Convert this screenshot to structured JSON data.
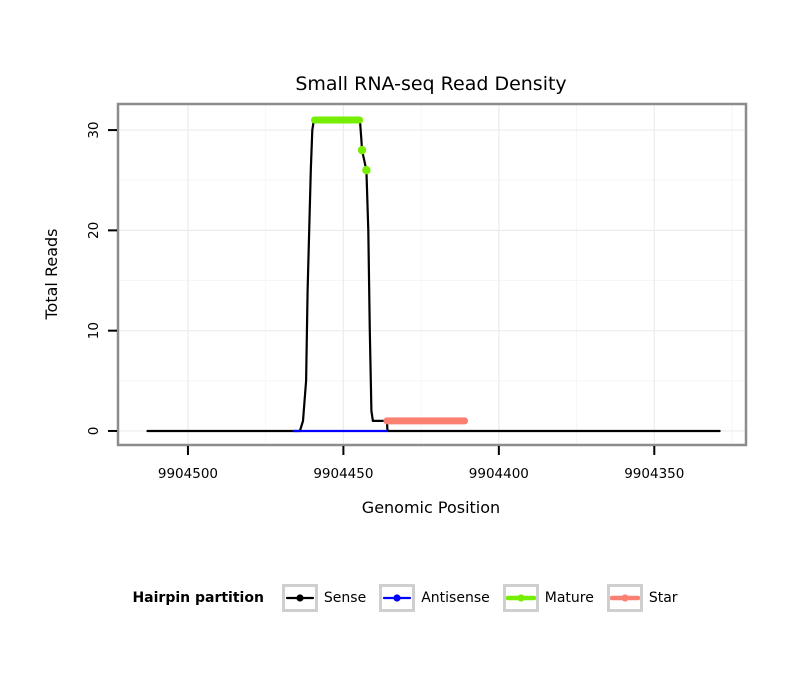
{
  "chart_data": {
    "type": "line",
    "title": "Small RNA-seq Read Density",
    "xlabel": "Genomic Position",
    "ylabel": "Total Reads",
    "legend_title": "Hairpin partition",
    "legend_position": "bottom",
    "grid": true,
    "x_reversed": true,
    "xlim": [
      9904522.5,
      9904320.5
    ],
    "ylim": [
      -1.4,
      32.6
    ],
    "x_ticks": [
      9904500,
      9904450,
      9904400,
      9904350
    ],
    "y_ticks": [
      0,
      10,
      20,
      30
    ],
    "panel_border_color": "#8c8c8c",
    "grid_major_color": "#ececec",
    "grid_minor_color": "#f6f6f6",
    "series": [
      {
        "name": "Sense",
        "color": "#000000",
        "width": 2.2,
        "points": [
          [
            9904513,
            0
          ],
          [
            9904464,
            0
          ],
          [
            9904463,
            1
          ],
          [
            9904462,
            5
          ],
          [
            9904461.5,
            14
          ],
          [
            9904460.5,
            26
          ],
          [
            9904460,
            30
          ],
          [
            9904459.5,
            31
          ],
          [
            9904444.7,
            31
          ],
          [
            9904444.2,
            29
          ],
          [
            9904444,
            28
          ],
          [
            9904442.6,
            26
          ],
          [
            9904442,
            20
          ],
          [
            9904441.5,
            10
          ],
          [
            9904441,
            2
          ],
          [
            9904440.5,
            1
          ],
          [
            9904436,
            1
          ],
          [
            9904435.8,
            0
          ],
          [
            9904329,
            0
          ]
        ],
        "markers": []
      },
      {
        "name": "Antisense",
        "color": "#0000ff",
        "width": 2.2,
        "points": [
          [
            9904466,
            0
          ],
          [
            9904436,
            0
          ]
        ],
        "markers": []
      },
      {
        "name": "Mature",
        "color": "#76ee00",
        "width": 7,
        "points": [
          [
            9904459.3,
            31
          ],
          [
            9904444.8,
            31
          ]
        ],
        "markers": [
          [
            9904444,
            28
          ],
          [
            9904442.6,
            26
          ]
        ]
      },
      {
        "name": "Star",
        "color": "#fa8072",
        "width": 7,
        "points": [
          [
            9904436,
            1
          ],
          [
            9904411,
            1
          ]
        ],
        "markers": []
      }
    ]
  }
}
